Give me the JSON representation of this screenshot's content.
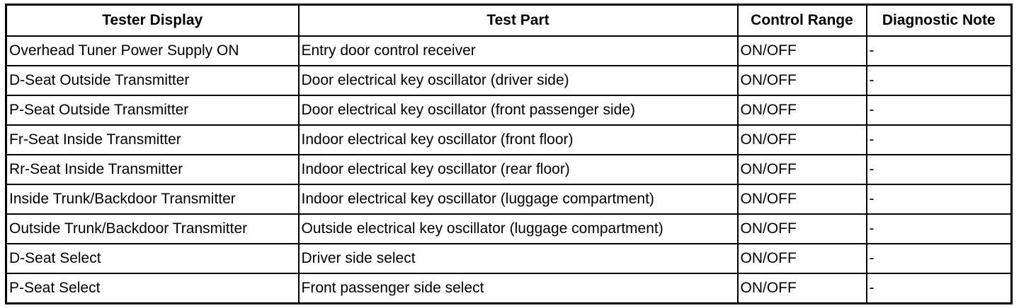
{
  "headers": [
    "Tester Display",
    "Test Part",
    "Control Range",
    "Diagnostic Note"
  ],
  "rows": [
    [
      "Overhead Tuner Power Supply ON",
      "Entry door control receiver",
      "ON/OFF",
      "-"
    ],
    [
      "D-Seat Outside Transmitter",
      "Door electrical key oscillator (driver side)",
      "ON/OFF",
      "-"
    ],
    [
      "P-Seat Outside Transmitter",
      "Door electrical key oscillator (front passenger side)",
      "ON/OFF",
      "-"
    ],
    [
      "Fr-Seat Inside Transmitter",
      "Indoor electrical key oscillator (front floor)",
      "ON/OFF",
      "-"
    ],
    [
      "Rr-Seat Inside Transmitter",
      "Indoor electrical key oscillator (rear floor)",
      "ON/OFF",
      "-"
    ],
    [
      "Inside Trunk/Backdoor Transmitter",
      "Indoor electrical key oscillator (luggage compartment)",
      "ON/OFF",
      "-"
    ],
    [
      "Outside Trunk/Backdoor Transmitter",
      "Outside electrical key oscillator (luggage compartment)",
      "ON/OFF",
      "-"
    ],
    [
      "D-Seat Select",
      "Driver side select",
      "ON/OFF",
      "-"
    ],
    [
      "P-Seat Select",
      "Front passenger side select",
      "ON/OFF",
      "-"
    ]
  ]
}
